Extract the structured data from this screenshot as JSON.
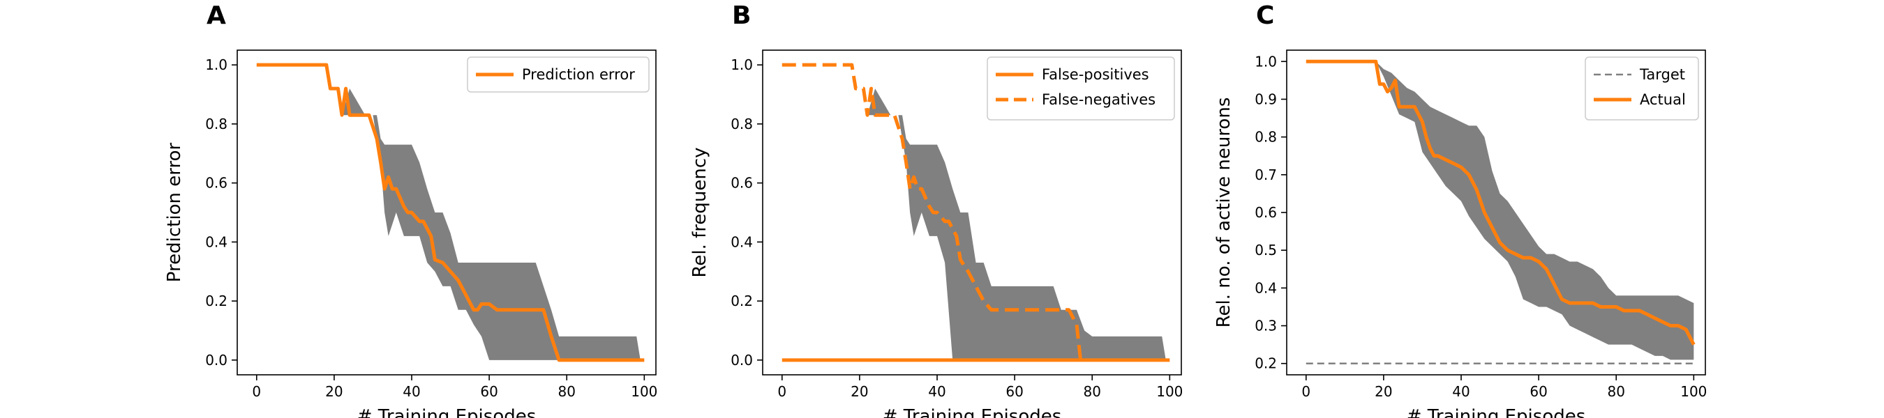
{
  "colors": {
    "accent": "#ff7f0e",
    "band": "#808080",
    "target": "#808080",
    "axis": "#000000",
    "legend_border": "#cccccc"
  },
  "chart_data": [
    {
      "type": "line",
      "panel_letter": "A",
      "xlabel": "# Training Episodes",
      "ylabel": "Prediction error",
      "xlim": [
        -5,
        103
      ],
      "ylim": [
        -0.05,
        1.05
      ],
      "xticks": [
        0,
        20,
        40,
        60,
        80,
        100
      ],
      "yticks": [
        0.0,
        0.2,
        0.4,
        0.6,
        0.8,
        1.0
      ],
      "ytick_decimals": 1,
      "legend_position": "top-right",
      "grid": false,
      "series": [
        {
          "name": "Prediction error",
          "style": "solid",
          "x": [
            0,
            18,
            19,
            20,
            21,
            22,
            23,
            24,
            29,
            31,
            32,
            33,
            34,
            35,
            36,
            38,
            39,
            40,
            42,
            43,
            45,
            46,
            48,
            50,
            52,
            54,
            56,
            57,
            58,
            60,
            62,
            64,
            66,
            68,
            70,
            72,
            74,
            76,
            78,
            80,
            90,
            100
          ],
          "y": [
            1.0,
            1.0,
            0.92,
            0.92,
            0.92,
            0.83,
            0.92,
            0.83,
            0.83,
            0.75,
            0.67,
            0.58,
            0.62,
            0.58,
            0.58,
            0.52,
            0.5,
            0.5,
            0.47,
            0.47,
            0.42,
            0.34,
            0.33,
            0.3,
            0.27,
            0.22,
            0.17,
            0.17,
            0.19,
            0.19,
            0.17,
            0.17,
            0.17,
            0.17,
            0.17,
            0.17,
            0.17,
            0.08,
            0.0,
            0.0,
            0.0,
            0.0
          ]
        }
      ],
      "band": {
        "x": [
          0,
          18,
          20,
          22,
          24,
          28,
          30,
          31,
          32,
          33,
          34,
          36,
          38,
          40,
          42,
          44,
          46,
          48,
          50,
          52,
          54,
          56,
          58,
          60,
          64,
          68,
          70,
          72,
          74,
          76,
          78,
          80,
          84,
          88,
          90,
          94,
          98,
          99
        ],
        "upper": [
          1.0,
          1.0,
          0.92,
          0.83,
          0.92,
          0.83,
          0.83,
          0.83,
          0.75,
          0.73,
          0.73,
          0.73,
          0.73,
          0.73,
          0.67,
          0.58,
          0.5,
          0.5,
          0.43,
          0.33,
          0.33,
          0.33,
          0.33,
          0.33,
          0.33,
          0.33,
          0.33,
          0.33,
          0.25,
          0.17,
          0.08,
          0.08,
          0.08,
          0.08,
          0.08,
          0.08,
          0.08,
          0.0
        ],
        "lower": [
          1.0,
          1.0,
          0.92,
          0.83,
          0.83,
          0.83,
          0.83,
          0.75,
          0.67,
          0.5,
          0.42,
          0.5,
          0.42,
          0.42,
          0.42,
          0.33,
          0.3,
          0.25,
          0.25,
          0.17,
          0.17,
          0.12,
          0.08,
          0.0,
          0.0,
          0.0,
          0.0,
          0.0,
          0.0,
          0.0,
          0.0,
          0.0,
          0.0,
          0.0,
          0.0,
          0.0,
          0.0,
          0.0
        ]
      }
    },
    {
      "type": "line",
      "panel_letter": "B",
      "xlabel": "# Training Episodes",
      "ylabel": "Rel. frequency",
      "xlim": [
        -5,
        103
      ],
      "ylim": [
        -0.05,
        1.05
      ],
      "xticks": [
        0,
        20,
        40,
        60,
        80,
        100
      ],
      "yticks": [
        0.0,
        0.2,
        0.4,
        0.6,
        0.8,
        1.0
      ],
      "ytick_decimals": 1,
      "legend_position": "top-right",
      "grid": false,
      "series": [
        {
          "name": "False-positives",
          "style": "solid",
          "x": [
            0,
            100
          ],
          "y": [
            0.0,
            0.0
          ]
        },
        {
          "name": "False-negatives",
          "style": "dashed",
          "x": [
            0,
            18,
            19,
            20,
            21,
            22,
            23,
            24,
            29,
            31,
            32,
            33,
            34,
            35,
            36,
            38,
            39,
            40,
            42,
            43,
            45,
            46,
            48,
            50,
            52,
            54,
            56,
            60,
            64,
            68,
            72,
            74,
            76,
            77,
            78
          ],
          "y": [
            1.0,
            1.0,
            0.92,
            0.92,
            0.92,
            0.83,
            0.92,
            0.83,
            0.83,
            0.75,
            0.67,
            0.58,
            0.62,
            0.58,
            0.58,
            0.52,
            0.5,
            0.5,
            0.47,
            0.47,
            0.42,
            0.34,
            0.3,
            0.25,
            0.2,
            0.17,
            0.17,
            0.17,
            0.17,
            0.17,
            0.17,
            0.17,
            0.12,
            0.0,
            0.0
          ]
        }
      ],
      "band": {
        "x": [
          0,
          18,
          20,
          22,
          24,
          28,
          30,
          31,
          32,
          33,
          34,
          36,
          38,
          40,
          42,
          44,
          46,
          48,
          50,
          52,
          54,
          56,
          58,
          60,
          64,
          68,
          70,
          72,
          74,
          76,
          78,
          80,
          84,
          88,
          90,
          94,
          98,
          99
        ],
        "upper": [
          1.0,
          1.0,
          0.92,
          0.83,
          0.92,
          0.83,
          0.83,
          0.83,
          0.75,
          0.73,
          0.73,
          0.73,
          0.73,
          0.73,
          0.67,
          0.58,
          0.5,
          0.5,
          0.33,
          0.33,
          0.25,
          0.25,
          0.25,
          0.25,
          0.25,
          0.25,
          0.25,
          0.17,
          0.17,
          0.17,
          0.1,
          0.08,
          0.08,
          0.08,
          0.08,
          0.08,
          0.08,
          0.0
        ],
        "lower": [
          1.0,
          1.0,
          0.92,
          0.83,
          0.83,
          0.83,
          0.83,
          0.75,
          0.67,
          0.5,
          0.42,
          0.5,
          0.42,
          0.42,
          0.33,
          0.0,
          0.0,
          0.0,
          0.0,
          0.0,
          0.0,
          0.0,
          0.0,
          0.0,
          0.0,
          0.0,
          0.0,
          0.0,
          0.0,
          0.0,
          0.0,
          0.0,
          0.0,
          0.0,
          0.0,
          0.0,
          0.0,
          0.0
        ]
      }
    },
    {
      "type": "line",
      "panel_letter": "C",
      "xlabel": "# Training Episodes",
      "ylabel": "Rel. no. of active neurons",
      "xlim": [
        -5,
        103
      ],
      "ylim": [
        0.17,
        1.03
      ],
      "xticks": [
        0,
        20,
        40,
        60,
        80,
        100
      ],
      "yticks": [
        0.2,
        0.3,
        0.4,
        0.5,
        0.6,
        0.7,
        0.8,
        0.9,
        1.0
      ],
      "ytick_decimals": 1,
      "legend_position": "top-right",
      "grid": false,
      "series": [
        {
          "name": "Target",
          "style": "dashed-thin",
          "x": [
            0,
            100
          ],
          "y": [
            0.2,
            0.2
          ]
        },
        {
          "name": "Actual",
          "style": "solid",
          "x": [
            0,
            18,
            19,
            20,
            21,
            22,
            23,
            24,
            26,
            28,
            30,
            31,
            32,
            33,
            34,
            36,
            38,
            40,
            42,
            44,
            46,
            48,
            50,
            52,
            54,
            56,
            58,
            60,
            62,
            64,
            66,
            68,
            70,
            72,
            74,
            76,
            78,
            80,
            82,
            84,
            86,
            88,
            90,
            92,
            94,
            96,
            98,
            100
          ],
          "y": [
            1.0,
            1.0,
            0.94,
            0.94,
            0.92,
            0.93,
            0.95,
            0.88,
            0.88,
            0.88,
            0.84,
            0.8,
            0.77,
            0.75,
            0.75,
            0.74,
            0.73,
            0.72,
            0.7,
            0.66,
            0.6,
            0.56,
            0.52,
            0.5,
            0.49,
            0.48,
            0.48,
            0.47,
            0.45,
            0.41,
            0.37,
            0.36,
            0.36,
            0.36,
            0.36,
            0.35,
            0.35,
            0.35,
            0.34,
            0.34,
            0.34,
            0.33,
            0.32,
            0.31,
            0.3,
            0.3,
            0.29,
            0.25
          ]
        }
      ],
      "band": {
        "x": [
          0,
          18,
          20,
          22,
          24,
          26,
          28,
          30,
          32,
          34,
          36,
          38,
          40,
          42,
          44,
          46,
          48,
          50,
          52,
          54,
          56,
          58,
          60,
          62,
          64,
          66,
          68,
          70,
          72,
          74,
          76,
          78,
          80,
          82,
          84,
          86,
          88,
          90,
          92,
          94,
          96,
          98,
          100
        ],
        "upper": [
          1.0,
          1.0,
          0.98,
          0.97,
          0.95,
          0.93,
          0.92,
          0.9,
          0.88,
          0.87,
          0.86,
          0.85,
          0.84,
          0.83,
          0.83,
          0.8,
          0.71,
          0.65,
          0.63,
          0.6,
          0.57,
          0.54,
          0.51,
          0.49,
          0.49,
          0.48,
          0.47,
          0.47,
          0.46,
          0.45,
          0.43,
          0.4,
          0.38,
          0.38,
          0.38,
          0.38,
          0.38,
          0.38,
          0.38,
          0.38,
          0.38,
          0.37,
          0.36
        ],
        "lower": [
          1.0,
          1.0,
          0.96,
          0.91,
          0.86,
          0.85,
          0.84,
          0.76,
          0.73,
          0.7,
          0.67,
          0.65,
          0.63,
          0.59,
          0.56,
          0.53,
          0.51,
          0.49,
          0.47,
          0.43,
          0.37,
          0.36,
          0.35,
          0.35,
          0.34,
          0.33,
          0.3,
          0.29,
          0.28,
          0.27,
          0.26,
          0.25,
          0.25,
          0.25,
          0.25,
          0.24,
          0.23,
          0.22,
          0.22,
          0.21,
          0.21,
          0.21,
          0.21
        ]
      }
    }
  ]
}
